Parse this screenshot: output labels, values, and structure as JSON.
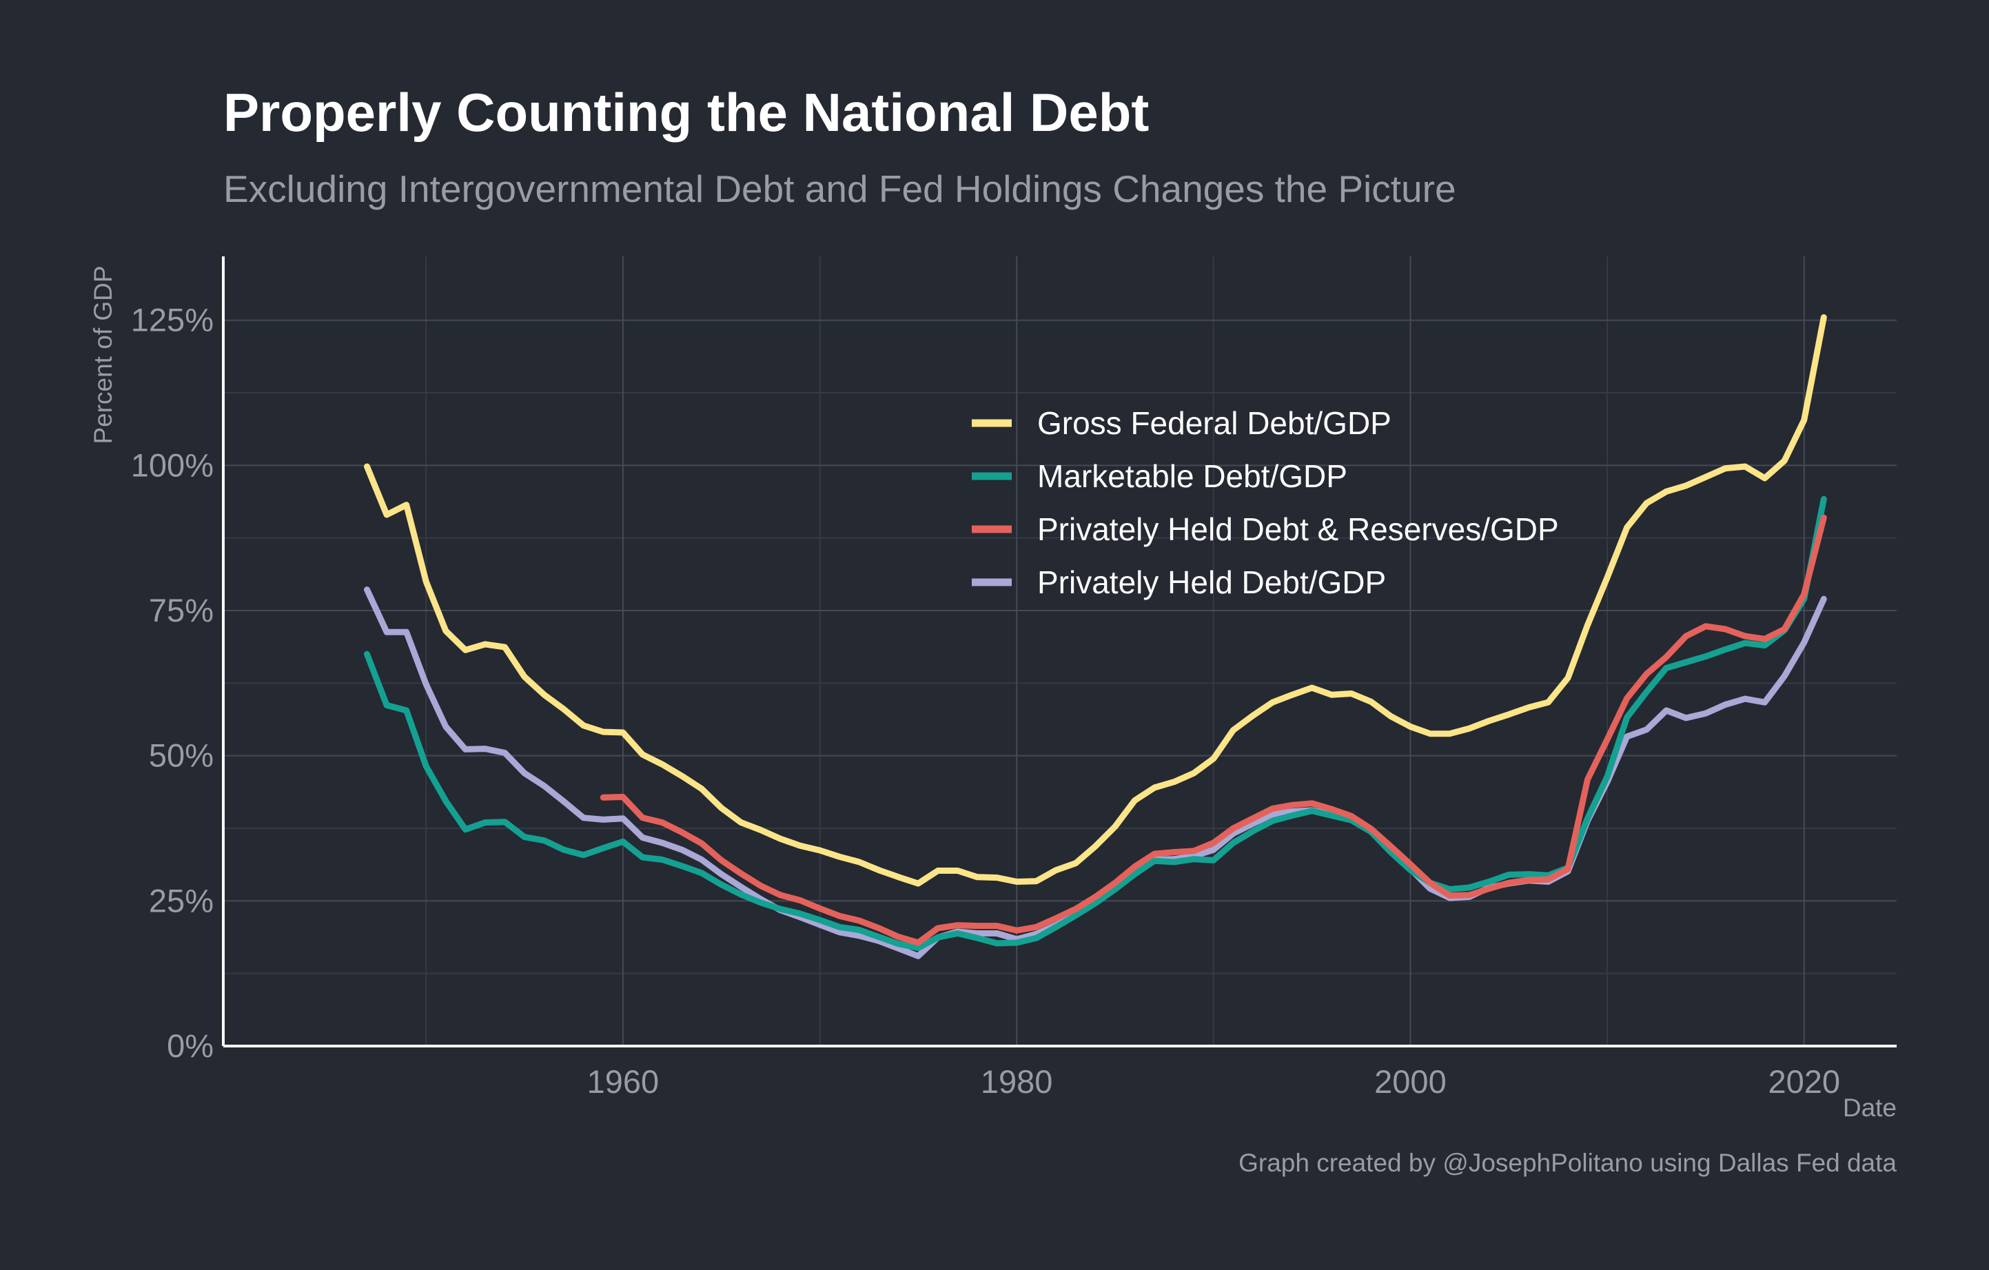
{
  "chart_data": {
    "type": "line",
    "title": "Properly Counting the National Debt",
    "subtitle": "Excluding Intergovernmental Debt and Fed Holdings Changes the Picture",
    "xlabel": "Date",
    "ylabel": "Percent of GDP",
    "caption": "Graph created by @JosephPolitano using Dallas Fed data",
    "xlim": [
      1939.7,
      2024.7
    ],
    "ylim": [
      0,
      1.36
    ],
    "x_ticks": [
      1960,
      1980,
      2000,
      2020
    ],
    "x_tick_labels": [
      "1960",
      "1980",
      "2000",
      "2020"
    ],
    "y_ticks": [
      0,
      0.25,
      0.5,
      0.75,
      1.0,
      1.25
    ],
    "y_tick_labels": [
      "0%",
      "25%",
      "50%",
      "75%",
      "100%",
      "125%"
    ],
    "grid": true,
    "legend_position": "inside-top-right",
    "series": [
      {
        "name": "Gross Federal Debt/GDP",
        "color": "#fce588",
        "x": [
          1947,
          1948,
          1949,
          1950,
          1951,
          1952,
          1953,
          1954,
          1955,
          1956,
          1957,
          1958,
          1959,
          1960,
          1961,
          1962,
          1963,
          1964,
          1965,
          1966,
          1967,
          1968,
          1969,
          1970,
          1971,
          1972,
          1973,
          1974,
          1975,
          1976,
          1977,
          1978,
          1979,
          1980,
          1981,
          1982,
          1983,
          1984,
          1985,
          1986,
          1987,
          1988,
          1989,
          1990,
          1991,
          1992,
          1993,
          1994,
          1995,
          1996,
          1997,
          1998,
          1999,
          2000,
          2001,
          2002,
          2003,
          2004,
          2005,
          2006,
          2007,
          2008,
          2009,
          2010,
          2011,
          2012,
          2013,
          2014,
          2015,
          2016,
          2017,
          2018,
          2019,
          2020,
          2021
        ],
        "values": [
          0.998,
          0.915,
          0.932,
          0.8,
          0.715,
          0.682,
          0.692,
          0.687,
          0.636,
          0.605,
          0.58,
          0.552,
          0.541,
          0.54,
          0.502,
          0.485,
          0.465,
          0.443,
          0.41,
          0.385,
          0.372,
          0.357,
          0.345,
          0.337,
          0.326,
          0.317,
          0.303,
          0.291,
          0.28,
          0.302,
          0.302,
          0.291,
          0.29,
          0.283,
          0.284,
          0.303,
          0.315,
          0.344,
          0.378,
          0.423,
          0.445,
          0.455,
          0.47,
          0.495,
          0.544,
          0.569,
          0.592,
          0.605,
          0.617,
          0.605,
          0.607,
          0.593,
          0.568,
          0.55,
          0.538,
          0.538,
          0.547,
          0.56,
          0.571,
          0.583,
          0.592,
          0.634,
          0.725,
          0.807,
          0.893,
          0.935,
          0.955,
          0.965,
          0.98,
          0.995,
          0.998,
          0.978,
          1.008,
          1.078,
          1.255
        ]
      },
      {
        "name": "Marketable Debt/GDP",
        "color": "#14a192",
        "x": [
          1947,
          1948,
          1949,
          1950,
          1951,
          1952,
          1953,
          1954,
          1955,
          1956,
          1957,
          1958,
          1959,
          1960,
          1961,
          1962,
          1963,
          1964,
          1965,
          1966,
          1967,
          1968,
          1969,
          1970,
          1971,
          1972,
          1973,
          1974,
          1975,
          1976,
          1977,
          1978,
          1979,
          1980,
          1981,
          1982,
          1983,
          1984,
          1985,
          1986,
          1987,
          1988,
          1989,
          1990,
          1991,
          1992,
          1993,
          1994,
          1995,
          1996,
          1997,
          1998,
          1999,
          2000,
          2001,
          2002,
          2003,
          2004,
          2005,
          2006,
          2007,
          2008,
          2009,
          2010,
          2011,
          2012,
          2013,
          2014,
          2015,
          2016,
          2017,
          2018,
          2019,
          2020,
          2021
        ],
        "values": [
          0.675,
          0.587,
          0.578,
          0.482,
          0.422,
          0.373,
          0.385,
          0.386,
          0.36,
          0.354,
          0.338,
          0.329,
          0.341,
          0.352,
          0.325,
          0.321,
          0.31,
          0.298,
          0.278,
          0.261,
          0.247,
          0.236,
          0.228,
          0.217,
          0.205,
          0.2,
          0.188,
          0.176,
          0.169,
          0.187,
          0.194,
          0.186,
          0.177,
          0.178,
          0.186,
          0.205,
          0.225,
          0.246,
          0.27,
          0.296,
          0.319,
          0.317,
          0.322,
          0.32,
          0.35,
          0.37,
          0.388,
          0.397,
          0.405,
          0.397,
          0.389,
          0.369,
          0.334,
          0.303,
          0.281,
          0.27,
          0.273,
          0.283,
          0.295,
          0.296,
          0.294,
          0.307,
          0.392,
          0.464,
          0.566,
          0.61,
          0.651,
          0.661,
          0.671,
          0.683,
          0.694,
          0.69,
          0.716,
          0.77,
          0.942
        ]
      },
      {
        "name": "Privately Held Debt & Reserves/GDP",
        "color": "#e4625b",
        "x": [
          1959,
          1960,
          1961,
          1962,
          1963,
          1964,
          1965,
          1966,
          1967,
          1968,
          1969,
          1970,
          1971,
          1972,
          1973,
          1974,
          1975,
          1976,
          1977,
          1978,
          1979,
          1980,
          1981,
          1982,
          1983,
          1984,
          1985,
          1986,
          1987,
          1988,
          1989,
          1990,
          1991,
          1992,
          1993,
          1994,
          1995,
          1996,
          1997,
          1998,
          1999,
          2000,
          2001,
          2002,
          2003,
          2004,
          2005,
          2006,
          2007,
          2008,
          2009,
          2010,
          2011,
          2012,
          2013,
          2014,
          2015,
          2016,
          2017,
          2018,
          2019,
          2020,
          2021
        ],
        "values": [
          0.428,
          0.429,
          0.393,
          0.385,
          0.368,
          0.349,
          0.32,
          0.297,
          0.276,
          0.26,
          0.251,
          0.237,
          0.224,
          0.216,
          0.203,
          0.188,
          0.178,
          0.203,
          0.208,
          0.207,
          0.207,
          0.199,
          0.205,
          0.22,
          0.236,
          0.257,
          0.281,
          0.309,
          0.331,
          0.334,
          0.336,
          0.35,
          0.375,
          0.392,
          0.409,
          0.415,
          0.418,
          0.408,
          0.396,
          0.374,
          0.344,
          0.313,
          0.281,
          0.259,
          0.26,
          0.271,
          0.281,
          0.286,
          0.287,
          0.305,
          0.459,
          0.528,
          0.599,
          0.641,
          0.67,
          0.706,
          0.723,
          0.718,
          0.706,
          0.701,
          0.718,
          0.778,
          0.91
        ]
      },
      {
        "name": "Privately Held Debt/GDP",
        "color": "#aaa8d6",
        "x": [
          1947,
          1948,
          1949,
          1950,
          1951,
          1952,
          1953,
          1954,
          1955,
          1956,
          1957,
          1958,
          1959,
          1960,
          1961,
          1962,
          1963,
          1964,
          1965,
          1966,
          1967,
          1968,
          1969,
          1970,
          1971,
          1972,
          1973,
          1974,
          1975,
          1976,
          1977,
          1978,
          1979,
          1980,
          1981,
          1982,
          1983,
          1984,
          1985,
          1986,
          1987,
          1988,
          1989,
          1990,
          1991,
          1992,
          1993,
          1994,
          1995,
          1996,
          1997,
          1998,
          1999,
          2000,
          2001,
          2002,
          2003,
          2004,
          2005,
          2006,
          2007,
          2008,
          2009,
          2010,
          2011,
          2012,
          2013,
          2014,
          2015,
          2016,
          2017,
          2018,
          2019,
          2020,
          2021
        ],
        "values": [
          0.786,
          0.713,
          0.713,
          0.623,
          0.55,
          0.511,
          0.512,
          0.505,
          0.47,
          0.448,
          0.421,
          0.393,
          0.39,
          0.392,
          0.359,
          0.35,
          0.338,
          0.321,
          0.296,
          0.274,
          0.253,
          0.234,
          0.222,
          0.209,
          0.196,
          0.19,
          0.181,
          0.168,
          0.155,
          0.187,
          0.197,
          0.194,
          0.194,
          0.184,
          0.193,
          0.208,
          0.226,
          0.247,
          0.272,
          0.301,
          0.321,
          0.322,
          0.327,
          0.338,
          0.366,
          0.383,
          0.399,
          0.404,
          0.406,
          0.399,
          0.391,
          0.37,
          0.338,
          0.305,
          0.271,
          0.255,
          0.257,
          0.273,
          0.28,
          0.285,
          0.283,
          0.301,
          0.388,
          0.455,
          0.533,
          0.545,
          0.578,
          0.565,
          0.573,
          0.588,
          0.598,
          0.592,
          0.637,
          0.695,
          0.77
        ]
      }
    ]
  }
}
